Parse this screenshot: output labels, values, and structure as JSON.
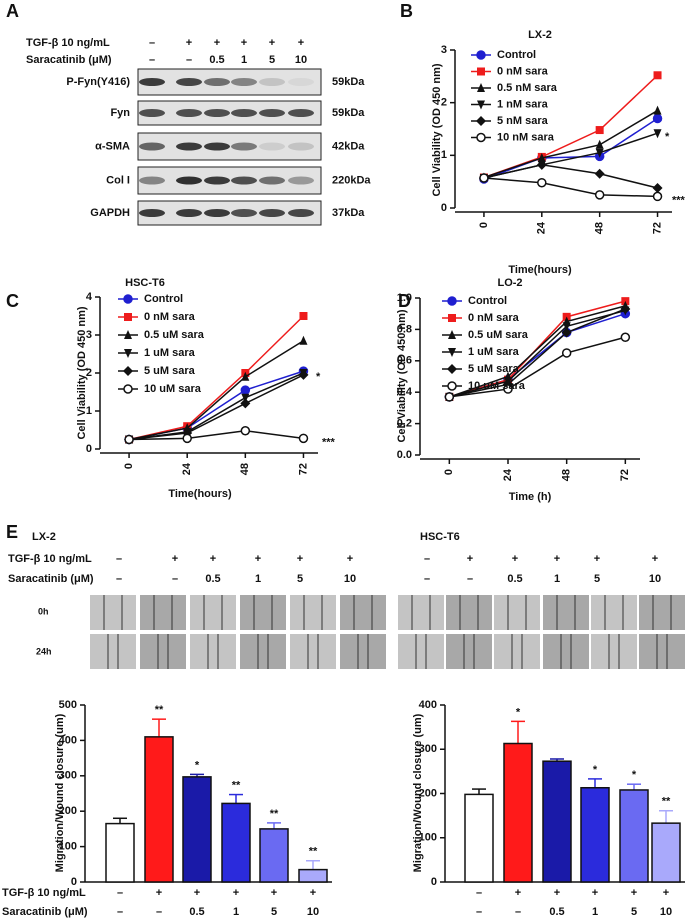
{
  "panel_a": {
    "letter": "A",
    "treatment_rows": [
      {
        "label": "TGF-β 10 ng/mL",
        "values": [
          "–",
          "+",
          "+",
          "+",
          "+",
          "+"
        ]
      },
      {
        "label": "Saracatinib (μM)",
        "values": [
          "–",
          "–",
          "0.5",
          "1",
          "5",
          "10"
        ]
      }
    ],
    "blots": [
      {
        "protein": "P-Fyn(Y416)",
        "size": "59kDa"
      },
      {
        "protein": "Fyn",
        "size": "59kDa"
      },
      {
        "protein": "α-SMA",
        "size": "42kDa"
      },
      {
        "protein": "Col I",
        "size": "220kDa"
      },
      {
        "protein": "GAPDH",
        "size": "37kDa"
      }
    ]
  },
  "panel_e": {
    "letter": "E",
    "time_labels": [
      "0h",
      "24h"
    ],
    "groups": [
      {
        "title": "LX-2",
        "treatment_rows": [
          {
            "label": "TGF-β 10 ng/mL",
            "values": [
              "–",
              "+",
              "+",
              "+",
              "+",
              "+"
            ]
          },
          {
            "label": "Saracatinib (μM)",
            "values": [
              "–",
              "–",
              "0.5",
              "1",
              "5",
              "10"
            ]
          }
        ]
      },
      {
        "title": "HSC-T6",
        "treatment_rows": [
          {
            "values": [
              "–",
              "+",
              "+",
              "+",
              "+",
              "+"
            ]
          },
          {
            "values": [
              "–",
              "–",
              "0.5",
              "1",
              "5",
              "10"
            ]
          }
        ]
      }
    ]
  },
  "chart_data": [
    {
      "type": "line",
      "panel_label": "B",
      "title": "LX-2",
      "x_label": "Time(hours)",
      "y_label": "Cell Viability (OD 450 nm)",
      "x": [
        0,
        24,
        48,
        72
      ],
      "xlim": [
        -12,
        78
      ],
      "xticks": [
        0,
        24,
        48,
        72
      ],
      "ylim": [
        0,
        3
      ],
      "yticks": [
        0,
        1,
        2,
        3
      ],
      "series": [
        {
          "name": "Control",
          "color": "#1f1fd0",
          "marker": "circle",
          "values": [
            0.55,
            0.95,
            0.98,
            1.7
          ]
        },
        {
          "name": "0 nM sara",
          "color": "#ee1c1c",
          "marker": "square",
          "values": [
            0.58,
            0.97,
            1.48,
            2.52
          ]
        },
        {
          "name": "0.5 nM sara",
          "color": "#111111",
          "marker": "triangle-up",
          "values": [
            0.58,
            0.95,
            1.2,
            1.85
          ]
        },
        {
          "name": "1 nM sara",
          "color": "#111111",
          "marker": "triangle-down",
          "values": [
            0.57,
            0.82,
            1.05,
            1.42
          ]
        },
        {
          "name": "5 nM sara",
          "color": "#111111",
          "marker": "diamond",
          "values": [
            0.57,
            0.82,
            0.65,
            0.38
          ]
        },
        {
          "name": "10  nM sara",
          "color": "#111111",
          "marker": "open-circle",
          "values": [
            0.57,
            0.48,
            0.25,
            0.22
          ]
        }
      ],
      "annotations": [
        "*",
        "***"
      ]
    },
    {
      "type": "line",
      "panel_label": "C",
      "title": "HSC-T6",
      "x_label": "Time(hours)",
      "y_label": "Cell Viability (OD 450 nm)",
      "x": [
        0,
        24,
        48,
        72
      ],
      "xlim": [
        -12,
        78
      ],
      "xticks": [
        0,
        24,
        48,
        72
      ],
      "ylim": [
        0,
        4
      ],
      "yticks": [
        0,
        1,
        2,
        3,
        4
      ],
      "series": [
        {
          "name": "Control",
          "color": "#1f1fd0",
          "marker": "circle",
          "values": [
            0.25,
            0.55,
            1.55,
            2.05
          ]
        },
        {
          "name": "0 nM sara",
          "color": "#ee1c1c",
          "marker": "square",
          "values": [
            0.25,
            0.6,
            2.0,
            3.5
          ]
        },
        {
          "name": "0.5 uM sara",
          "color": "#111111",
          "marker": "triangle-up",
          "values": [
            0.25,
            0.55,
            1.9,
            2.85
          ]
        },
        {
          "name": "1 uM sara",
          "color": "#111111",
          "marker": "triangle-down",
          "values": [
            0.25,
            0.45,
            1.35,
            2.0
          ]
        },
        {
          "name": "5 uM sara",
          "color": "#111111",
          "marker": "diamond",
          "values": [
            0.25,
            0.42,
            1.2,
            1.95
          ]
        },
        {
          "name": "10 uM sara",
          "color": "#111111",
          "marker": "open-circle",
          "values": [
            0.25,
            0.28,
            0.48,
            0.28
          ]
        }
      ],
      "annotations": [
        "*",
        "***"
      ]
    },
    {
      "type": "line",
      "panel_label": "D",
      "title": "LO-2",
      "x_label": "Time (h)",
      "y_label": "Cell Viability (OD 450 nm)",
      "x": [
        0,
        24,
        48,
        72
      ],
      "xlim": [
        -12,
        78
      ],
      "xticks": [
        0,
        24,
        48,
        72
      ],
      "ylim": [
        0,
        1
      ],
      "yticks": [
        {
          "value": 0,
          "label": "0.0"
        },
        0.2,
        0.4,
        0.6,
        0.8,
        {
          "value": 1,
          "label": "1.0"
        }
      ],
      "series": [
        {
          "name": "Control",
          "color": "#1f1fd0",
          "marker": "circle",
          "values": [
            0.37,
            0.48,
            0.78,
            0.9
          ]
        },
        {
          "name": "0 nM sara",
          "color": "#ee1c1c",
          "marker": "square",
          "values": [
            0.37,
            0.48,
            0.88,
            0.98
          ]
        },
        {
          "name": "0.5 uM sara",
          "color": "#111111",
          "marker": "triangle-up",
          "values": [
            0.37,
            0.5,
            0.85,
            0.95
          ]
        },
        {
          "name": "1 uM sara",
          "color": "#111111",
          "marker": "triangle-down",
          "values": [
            0.37,
            0.47,
            0.82,
            0.92
          ]
        },
        {
          "name": "5 uM sara",
          "color": "#111111",
          "marker": "diamond",
          "values": [
            0.37,
            0.45,
            0.78,
            0.93
          ]
        },
        {
          "name": "10 uM sara",
          "color": "#111111",
          "marker": "open-circle",
          "values": [
            0.37,
            0.42,
            0.65,
            0.75
          ]
        }
      ]
    },
    {
      "type": "bar",
      "y_label": "Migration/Wound closure (um)",
      "ylim": [
        0,
        500
      ],
      "yticks": [
        0,
        100,
        200,
        300,
        400,
        500
      ],
      "values": [
        165,
        410,
        297,
        222,
        150,
        35
      ],
      "errors": [
        15,
        50,
        7,
        25,
        17,
        25
      ],
      "colors": [
        "#ffffff",
        "#ff1a1a",
        "#1a1aa8",
        "#2b2bdc",
        "#6a6af2",
        "#a9a9fb"
      ],
      "value_annotations": [
        null,
        "**",
        "*",
        "**",
        "**",
        "**"
      ],
      "treatment_rows": [
        {
          "label": "TGF-β 10 ng/mL",
          "values": [
            "–",
            "+",
            "+",
            "+",
            "+",
            "+"
          ]
        },
        {
          "label": "Saracatinib (μM)",
          "values": [
            "–",
            "–",
            "0.5",
            "1",
            "5",
            "10"
          ]
        }
      ]
    },
    {
      "type": "bar",
      "y_label": "Migration/Wound closure (um)",
      "ylim": [
        0,
        400
      ],
      "yticks": [
        0,
        100,
        200,
        300,
        400
      ],
      "values": [
        198,
        313,
        273,
        213,
        208,
        133
      ],
      "errors": [
        12,
        50,
        5,
        20,
        13,
        28
      ],
      "colors": [
        "#ffffff",
        "#ff1a1a",
        "#1a1aa8",
        "#2b2bdc",
        "#6a6af2",
        "#a9a9fb"
      ],
      "value_annotations": [
        null,
        "*",
        null,
        "*",
        "*",
        "**"
      ],
      "treatment_rows": [
        {
          "values": [
            "–",
            "+",
            "+",
            "+",
            "+",
            "+"
          ]
        },
        {
          "values": [
            "–",
            "–",
            "0.5",
            "1",
            "5",
            "10"
          ]
        }
      ]
    }
  ]
}
